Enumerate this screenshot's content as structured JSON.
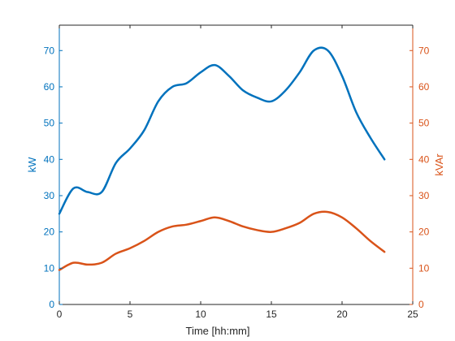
{
  "chart_data": {
    "type": "line",
    "xlabel": "Time [hh:mm]",
    "xlim": [
      0,
      25
    ],
    "xticks": [
      0,
      5,
      10,
      15,
      20,
      25
    ],
    "y_left": {
      "label": "kW",
      "lim": [
        0,
        77
      ],
      "ticks": [
        0,
        10,
        20,
        30,
        40,
        50,
        60,
        70
      ]
    },
    "y_right": {
      "label": "kVAr",
      "lim": [
        0,
        77
      ],
      "ticks": [
        0,
        10,
        20,
        30,
        40,
        50,
        60,
        70
      ]
    },
    "grid": false,
    "legend": "none",
    "series": [
      {
        "axis": "left",
        "color": "#0072BD",
        "x": [
          0,
          1,
          2,
          3,
          4,
          5,
          6,
          7,
          8,
          9,
          10,
          11,
          12,
          13,
          14,
          15,
          16,
          17,
          18,
          19,
          20,
          21,
          22,
          23
        ],
        "y": [
          25,
          32,
          31,
          31,
          39,
          43,
          48,
          56,
          60,
          61,
          64,
          66,
          63,
          59,
          57,
          56,
          59,
          64,
          70,
          70,
          63,
          53,
          46,
          40
        ]
      },
      {
        "axis": "right",
        "color": "#D95319",
        "x": [
          0,
          1,
          2,
          3,
          4,
          5,
          6,
          7,
          8,
          9,
          10,
          11,
          12,
          13,
          14,
          15,
          16,
          17,
          18,
          19,
          20,
          21,
          22,
          23
        ],
        "y": [
          9.5,
          11.5,
          11,
          11.5,
          14,
          15.5,
          17.5,
          20,
          21.5,
          22,
          23,
          24,
          23,
          21.5,
          20.5,
          20,
          21,
          22.5,
          25,
          25.5,
          24,
          21,
          17.5,
          14.5
        ]
      }
    ]
  }
}
